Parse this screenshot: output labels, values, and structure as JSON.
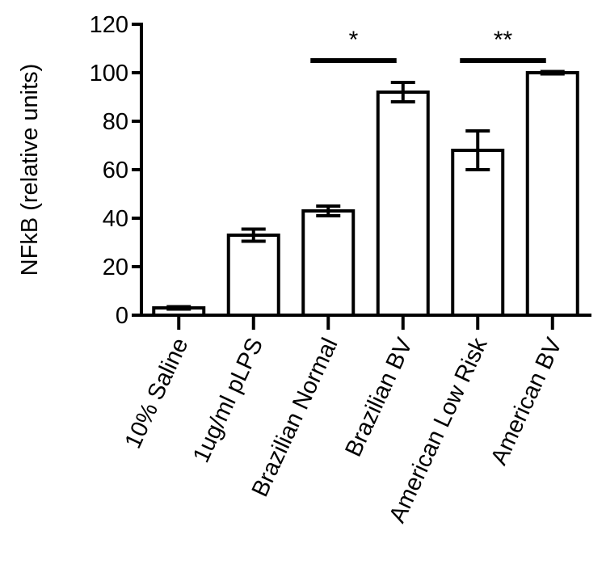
{
  "chart_data": {
    "type": "bar",
    "title": "",
    "xlabel": "",
    "ylabel": "NFkB (relative units)",
    "ylim": [
      0,
      120
    ],
    "yticks": [
      0,
      20,
      40,
      60,
      80,
      100,
      120
    ],
    "grid": false,
    "categories": [
      "10% Saline",
      "1ug/ml pLPS",
      "Brazilian Normal",
      "Brazilian BV",
      "American Low Risk",
      "American BV"
    ],
    "values": [
      3,
      33,
      43,
      92,
      68,
      100
    ],
    "error": [
      0.5,
      2.5,
      2,
      4,
      8,
      0.5
    ],
    "significance": [
      {
        "from": 2,
        "to": 3,
        "label": "*",
        "y": 105
      },
      {
        "from": 4,
        "to": 5,
        "label": "**",
        "y": 105
      }
    ]
  }
}
